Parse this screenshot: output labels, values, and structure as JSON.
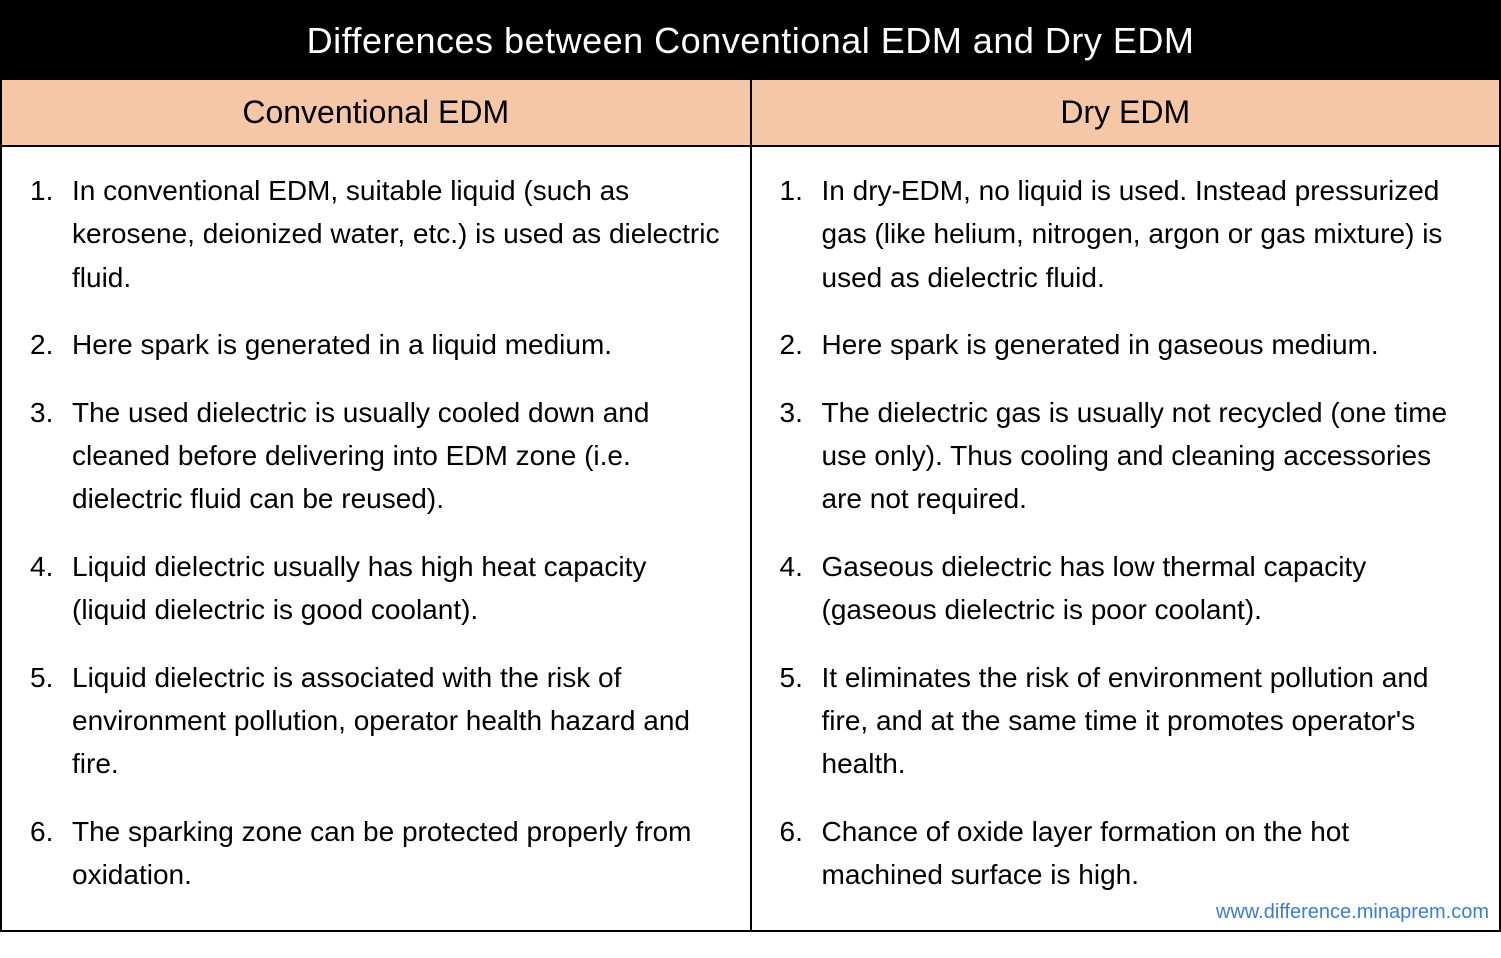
{
  "title": "Differences between Conventional EDM and Dry EDM",
  "columns": {
    "left": {
      "header": "Conventional EDM",
      "points": [
        "In conventional EDM, suitable liquid (such as kerosene, deionized water, etc.) is used as dielectric fluid.",
        "Here spark is generated in a liquid medium.",
        "The used dielectric is usually cooled down and cleaned before delivering into EDM zone (i.e. dielectric fluid can be reused).",
        "Liquid dielectric usually has high heat capacity (liquid dielectric is good coolant).",
        "Liquid dielectric is associated with the risk of environment pollution, operator health hazard and fire.",
        "The sparking zone can be protected properly from oxidation."
      ]
    },
    "right": {
      "header": "Dry EDM",
      "points": [
        "In dry-EDM, no liquid is used. Instead pressurized gas (like helium,  nitrogen,  argon or gas mixture) is used as dielectric fluid.",
        "Here spark is generated in gaseous medium.",
        "The dielectric gas is usually not recycled (one time use only). Thus cooling and cleaning accessories are not required.",
        "Gaseous dielectric has low thermal capacity (gaseous dielectric is poor coolant).",
        "It eliminates the risk of environment pollution and fire, and at the same time it promotes operator's health.",
        "Chance of oxide layer formation on the hot machined surface is high."
      ]
    }
  },
  "source_link": "www.difference.minaprem.com",
  "style": {
    "title_bg": "#000000",
    "title_color": "#ffffff",
    "title_fontsize": 36,
    "header_bg": "#f6c7a6",
    "header_fontsize": 32,
    "body_fontsize": 28,
    "line_height": 1.55,
    "border_color": "#000000",
    "link_color": "#3b7dd8",
    "background_color": "#ffffff"
  }
}
